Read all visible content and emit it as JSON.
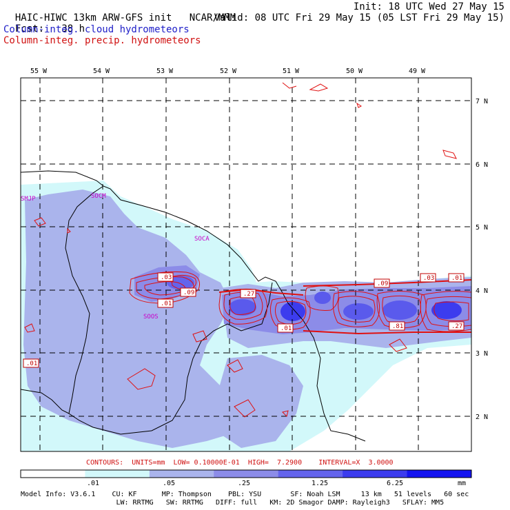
{
  "header": {
    "model_title": "HAIC-HIWC 13km ARW-GFS init",
    "center": "NCAR/MMM",
    "init_time": "Init: 18 UTC Wed 27 May 15",
    "fcst_label": "Fcst:",
    "fcst_value": "38 h",
    "valid_time": "Valid: 08 UTC Fri 29 May 15 (05 LST Fri 29 May 15)"
  },
  "legend": {
    "cloud": "Column-integ. cloud hydrometeors",
    "precip": "Column-integ. precip. hydrometeors"
  },
  "map": {
    "longitudes": [
      "55 W",
      "54 W",
      "53 W",
      "52 W",
      "51 W",
      "50 W",
      "49 W"
    ],
    "latitudes": [
      "7 N",
      "6 N",
      "5 N",
      "4 N",
      "3 N",
      "2 N"
    ],
    "sites": [
      "SMJP",
      "SOCM",
      "SOCA",
      "SOOS"
    ],
    "contour_labels": [
      ".03",
      ".01",
      ".09",
      ".27",
      ".01",
      ".09",
      ".03",
      ".01",
      ".81",
      ".27",
      ".01"
    ]
  },
  "contour_info": {
    "prefix": "CONTOURS:",
    "units": "UNITS=mm",
    "low": "LOW= 0.10000E-01",
    "high": "HIGH=  7.2900",
    "interval": "INTERVAL=X  3.0000"
  },
  "colorbar": {
    "ticks": [
      ".01",
      ".05",
      ".25",
      "1.25",
      "6.25"
    ],
    "unit": "mm",
    "colors": [
      "#ffffff",
      "#d2f8fa",
      "#aab4ec",
      "#8c8ce8",
      "#6464ec",
      "#3c3cee",
      "#1414f0"
    ]
  },
  "model_info": {
    "line1": "Model Info: V3.6.1    CU: KF      MP: Thompson    PBL: YSU       SF: Noah LSM     13 km   51 levels   60 sec",
    "line2": "                       LW: RRTMG   SW: RRTMG   DIFF: full   KM: 2D Smagor DAMP: Rayleigh3   SFLAY: MM5"
  }
}
